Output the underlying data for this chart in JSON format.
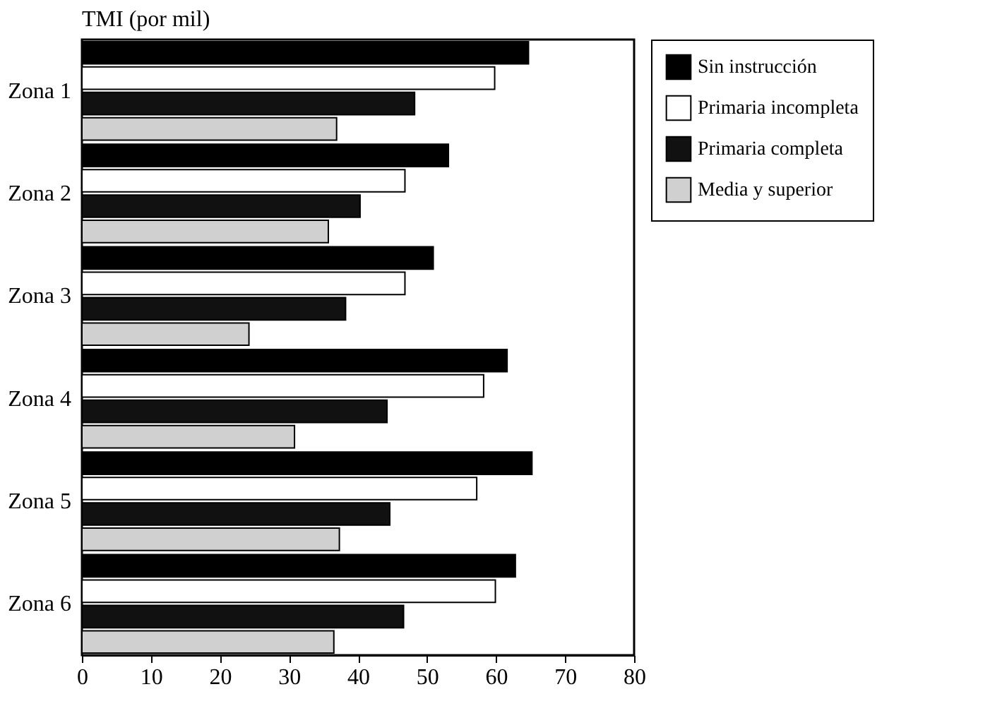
{
  "chart_data": {
    "type": "bar",
    "orientation": "horizontal",
    "title": "TMI (por mil)",
    "categories": [
      "Zona 1",
      "Zona 2",
      "Zona 3",
      "Zona 4",
      "Zona 5",
      "Zona 6"
    ],
    "series": [
      {
        "name": "Sin instrucción",
        "color": "#000000",
        "values": [
          64.7,
          53.1,
          50.9,
          61.6,
          65.2,
          62.8
        ]
      },
      {
        "name": "Primaria incompleta",
        "color": "#ffffff",
        "values": [
          59.8,
          46.8,
          46.8,
          58.2,
          57.2,
          59.9
        ]
      },
      {
        "name": "Primaria completa",
        "color": "#111111",
        "values": [
          48.2,
          40.3,
          38.2,
          44.2,
          44.6,
          46.6
        ]
      },
      {
        "name": "Media y superior",
        "color": "#d0d0d0",
        "values": [
          36.9,
          35.7,
          24.2,
          30.8,
          37.3,
          36.5
        ]
      }
    ],
    "xlim": [
      0,
      80
    ],
    "xticks": [
      0,
      10,
      20,
      30,
      40,
      50,
      60,
      70,
      80
    ],
    "grid": false,
    "legend": "top right"
  }
}
